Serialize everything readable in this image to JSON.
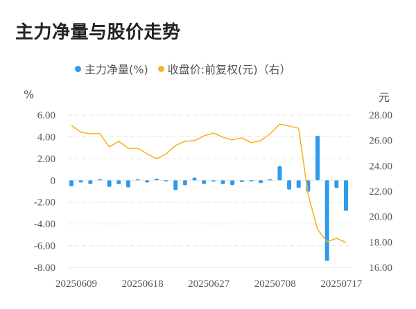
{
  "title": "主力净量与股价走势",
  "legend": [
    {
      "label": "主力净量(%)",
      "color": "#2f9bec"
    },
    {
      "label": "收盘价:前复权(元)（右）",
      "color": "#f7b325"
    }
  ],
  "left_axis_unit": "%",
  "right_axis_unit": "元",
  "chart_data": {
    "type": "bar+line",
    "title": "主力净量与股价走势",
    "x_tick_labels": [
      "20250609",
      "20250618",
      "20250627",
      "20250708",
      "20250717"
    ],
    "x_count": 30,
    "left_axis": {
      "label": "%",
      "ticks": [
        "6.00",
        "4.00",
        "2.00",
        "0",
        "-2.00",
        "-4.00",
        "-6.00",
        "-8.00"
      ],
      "ylim": [
        -8,
        6
      ]
    },
    "right_axis": {
      "label": "元",
      "ticks": [
        "28.00",
        "26.00",
        "24.00",
        "22.00",
        "20.00",
        "18.00",
        "16.00"
      ],
      "ylim": [
        16,
        28
      ]
    },
    "grid": true,
    "legend_position": "top",
    "series": [
      {
        "name": "主力净量(%)",
        "type": "bar",
        "axis": "left",
        "color": "#2f9bec",
        "values": [
          -0.55,
          -0.2,
          -0.35,
          0.05,
          -0.6,
          -0.35,
          -0.65,
          0.05,
          -0.2,
          0.15,
          -0.05,
          -0.9,
          -0.45,
          0.25,
          -0.35,
          -0.1,
          -0.35,
          -0.45,
          -0.15,
          -0.05,
          -0.25,
          0.1,
          1.3,
          -0.85,
          -0.7,
          -1.05,
          4.1,
          -7.4,
          -0.7,
          -2.8
        ]
      },
      {
        "name": "收盘价:前复权(元)（右）",
        "type": "line",
        "axis": "right",
        "color": "#f7b325",
        "values": [
          27.18,
          26.64,
          26.53,
          26.53,
          25.49,
          25.93,
          25.38,
          25.38,
          24.94,
          24.56,
          24.94,
          25.6,
          25.93,
          25.98,
          26.36,
          26.58,
          26.25,
          26.04,
          26.2,
          25.82,
          25.98,
          26.53,
          27.29,
          27.13,
          26.96,
          21.73,
          19.0,
          18.02,
          18.29,
          17.96
        ]
      }
    ]
  }
}
